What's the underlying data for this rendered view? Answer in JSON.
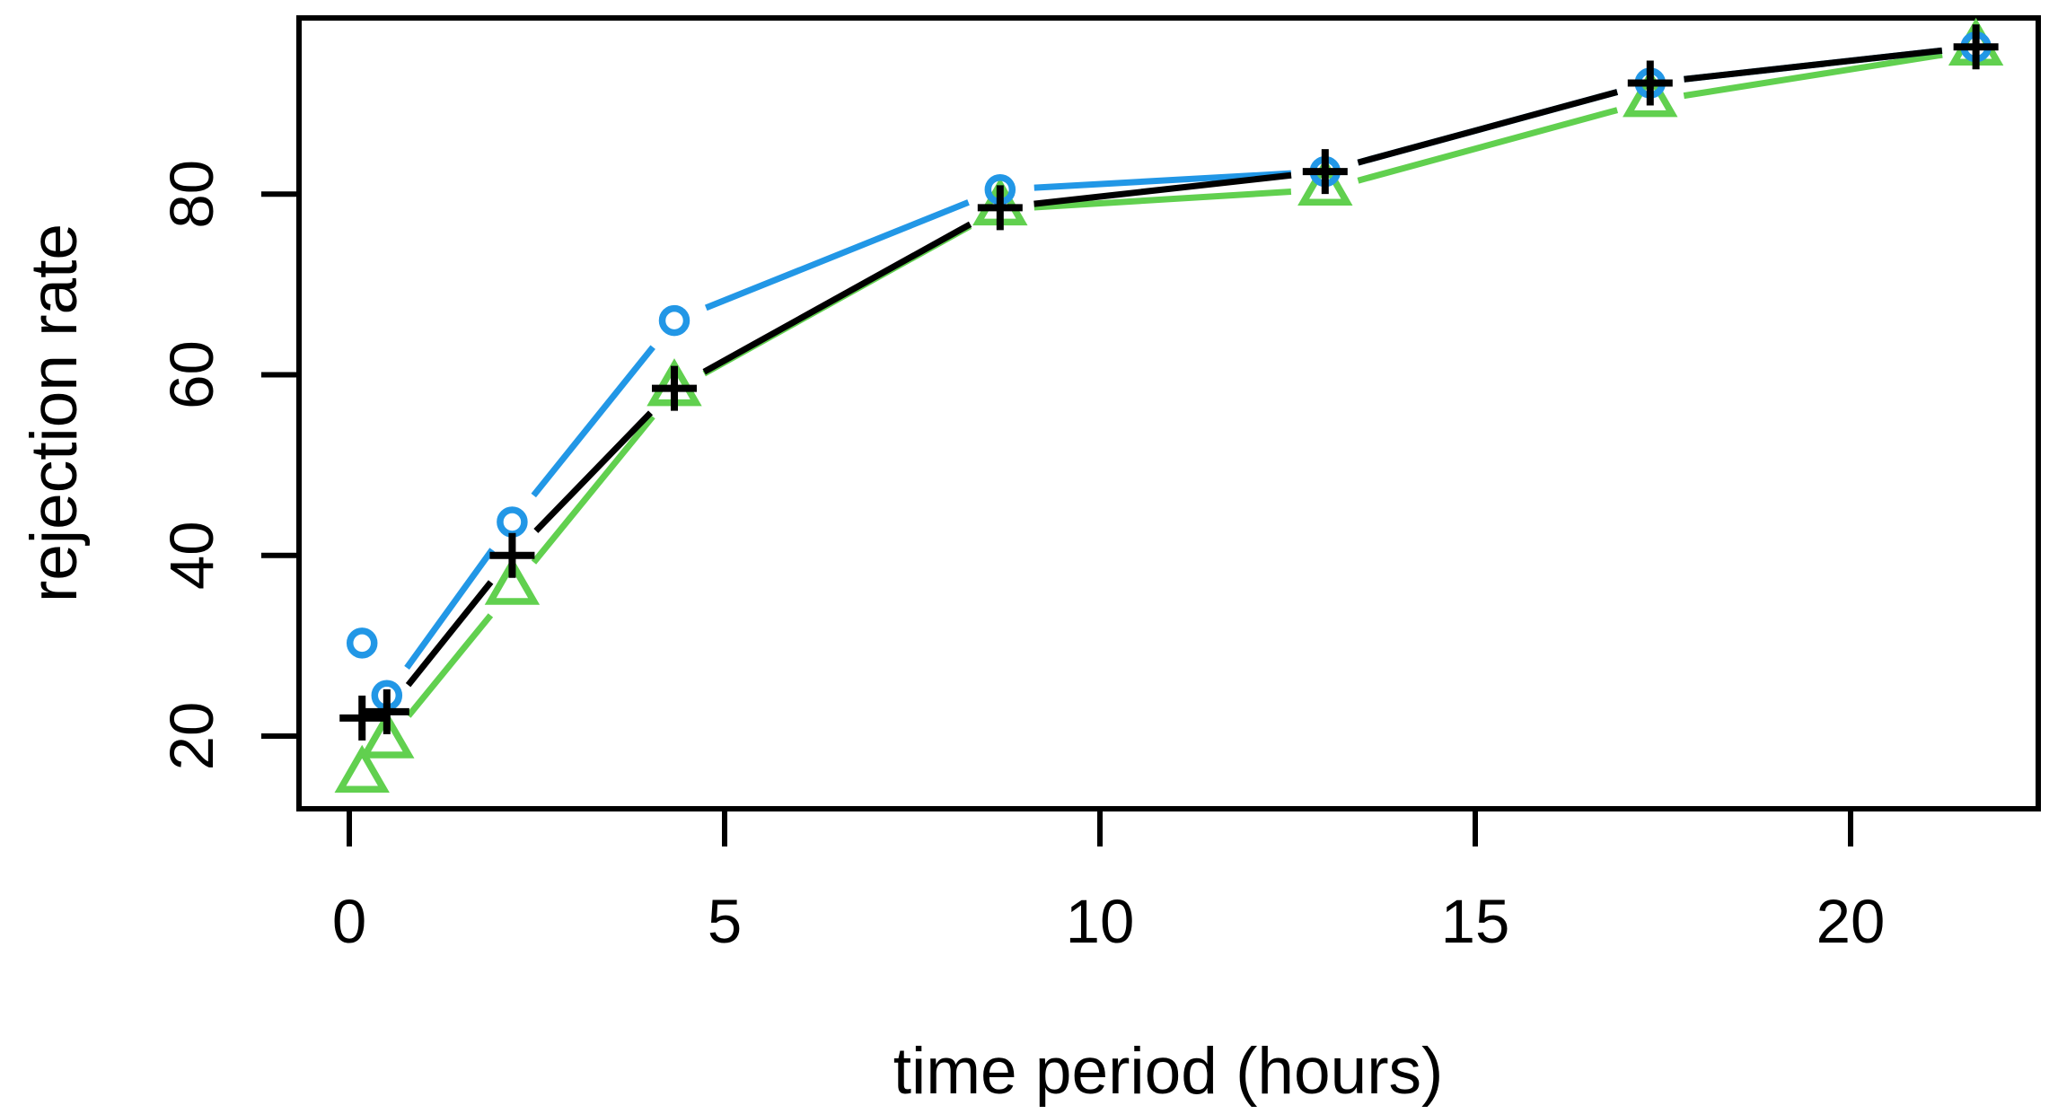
{
  "figure": {
    "background": "#FFFFFF",
    "frame_color": "#000000"
  },
  "chart_data": {
    "type": "line",
    "title": "",
    "xlabel": "time period (hours)",
    "ylabel": "rejection rate",
    "x": [
      0.17,
      0.5,
      2.17,
      4.33,
      8.67,
      13,
      17.33,
      21.67
    ],
    "series": [
      {
        "name": "triangle-series",
        "marker": "triangle",
        "color": "#61D04F",
        "values": [
          15.5,
          19.3,
          36.3,
          58.3,
          78.3,
          80.5,
          90.3,
          96.0
        ]
      },
      {
        "name": "circle-series",
        "marker": "circle",
        "color": "#2297E6",
        "values": [
          30.3,
          24.5,
          43.7,
          66.0,
          80.5,
          82.5,
          92.3,
          96.3
        ]
      },
      {
        "name": "plus-series",
        "marker": "plus",
        "color": "#000000",
        "values": [
          22.0,
          22.7,
          40.0,
          58.5,
          78.5,
          82.5,
          92.3,
          96.3
        ]
      }
    ],
    "x_ticks": [
      0,
      5,
      10,
      15,
      20
    ],
    "y_ticks": [
      20,
      40,
      60,
      80
    ],
    "xlim": [
      -0.67,
      22.5
    ],
    "ylim": [
      11.95,
      99.5
    ],
    "grid": false,
    "legend": null,
    "style_note": "points joined by line segments with gaps around markers (R type='b')"
  }
}
